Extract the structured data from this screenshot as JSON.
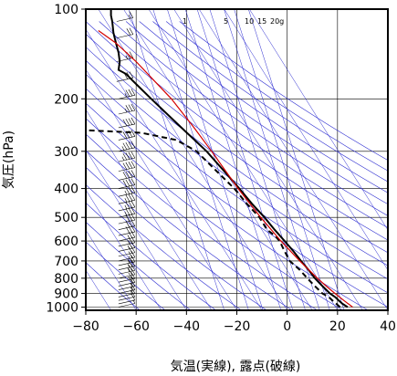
{
  "chart_data": {
    "type": "line",
    "title": "",
    "xlabel": "気温(実線), 露点(破線)",
    "ylabel": "気圧(hPa)",
    "xlim": [
      -80,
      40
    ],
    "ylim": [
      1025,
      100
    ],
    "y_scale": "log",
    "x_ticks": [
      -80,
      -60,
      -40,
      -20,
      0,
      20,
      40
    ],
    "x_tick_labels": [
      "−80",
      "−60",
      "−40",
      "−20",
      "0",
      "20",
      "40"
    ],
    "y_ticks": [
      100,
      200,
      300,
      400,
      500,
      600,
      700,
      800,
      900,
      1000
    ],
    "y_tick_labels": [
      "100",
      "200",
      "300",
      "400",
      "500",
      "600",
      "700",
      "800",
      "900",
      "1000"
    ],
    "grid": true,
    "mixing_ratio_labels": [
      {
        "text": "1",
        "value": 1
      },
      {
        "text": "5",
        "value": 5
      },
      {
        "text": "10",
        "value": 10
      },
      {
        "text": "15",
        "value": 15
      },
      {
        "text": "20g",
        "value": 20
      }
    ],
    "series": [
      {
        "role": "temperature",
        "style": "solid",
        "color": "#000000",
        "p": [
          1000,
          975,
          950,
          925,
          900,
          850,
          800,
          750,
          700,
          650,
          600,
          550,
          500,
          450,
          400,
          350,
          300,
          250,
          200,
          175,
          165,
          160,
          150,
          140,
          130,
          125,
          120,
          110,
          105,
          100
        ],
        "t": [
          24,
          22,
          20.5,
          19,
          17,
          14,
          11,
          8.5,
          5.5,
          2.5,
          -1,
          -5,
          -9,
          -14,
          -19,
          -25,
          -32,
          -42,
          -54,
          -61,
          -64,
          -67,
          -66.5,
          -67,
          -68,
          -68.5,
          -69,
          -69.5,
          -70,
          -70
        ]
      },
      {
        "role": "dew_point",
        "style": "dashed",
        "color": "#000000",
        "p": [
          1000,
          975,
          950,
          925,
          900,
          850,
          800,
          750,
          700,
          650,
          600,
          575,
          550,
          500,
          450,
          400,
          350,
          300,
          275,
          260,
          255
        ],
        "t": [
          21,
          19.5,
          18,
          16.5,
          14,
          11,
          8,
          5,
          1,
          -1,
          -3,
          -5,
          -8,
          -11,
          -16,
          -21,
          -28,
          -36,
          -44,
          -58,
          -80
        ]
      },
      {
        "role": "parcel",
        "style": "solid",
        "color": "#d40000",
        "p": [
          1000,
          950,
          900,
          850,
          800,
          700,
          600,
          500,
          400,
          300,
          250,
          200,
          175,
          150,
          130,
          118
        ],
        "t": [
          26,
          22.5,
          19,
          15.5,
          12,
          5,
          -2.5,
          -10.5,
          -19.5,
          -30,
          -37,
          -46,
          -52.5,
          -60,
          -68,
          -75
        ]
      }
    ],
    "wind_profile": {
      "p": [
        1000,
        975,
        950,
        925,
        900,
        875,
        850,
        825,
        800,
        775,
        750,
        725,
        700,
        675,
        650,
        625,
        600,
        575,
        550,
        525,
        500,
        475,
        450,
        425,
        400,
        375,
        350,
        325,
        300,
        275,
        250,
        225,
        200,
        175,
        150,
        125,
        110,
        100
      ],
      "speed_kt": [
        5,
        10,
        10,
        15,
        15,
        15,
        20,
        20,
        20,
        25,
        25,
        25,
        20,
        20,
        25,
        25,
        25,
        30,
        30,
        30,
        35,
        35,
        35,
        35,
        40,
        40,
        40,
        45,
        45,
        40,
        40,
        35,
        35,
        30,
        25,
        20,
        15,
        10
      ]
    }
  },
  "colors": {
    "grid": "#000000",
    "adiabats": "#2a2ad0",
    "temperature": "#000000",
    "parcel": "#d40000"
  }
}
